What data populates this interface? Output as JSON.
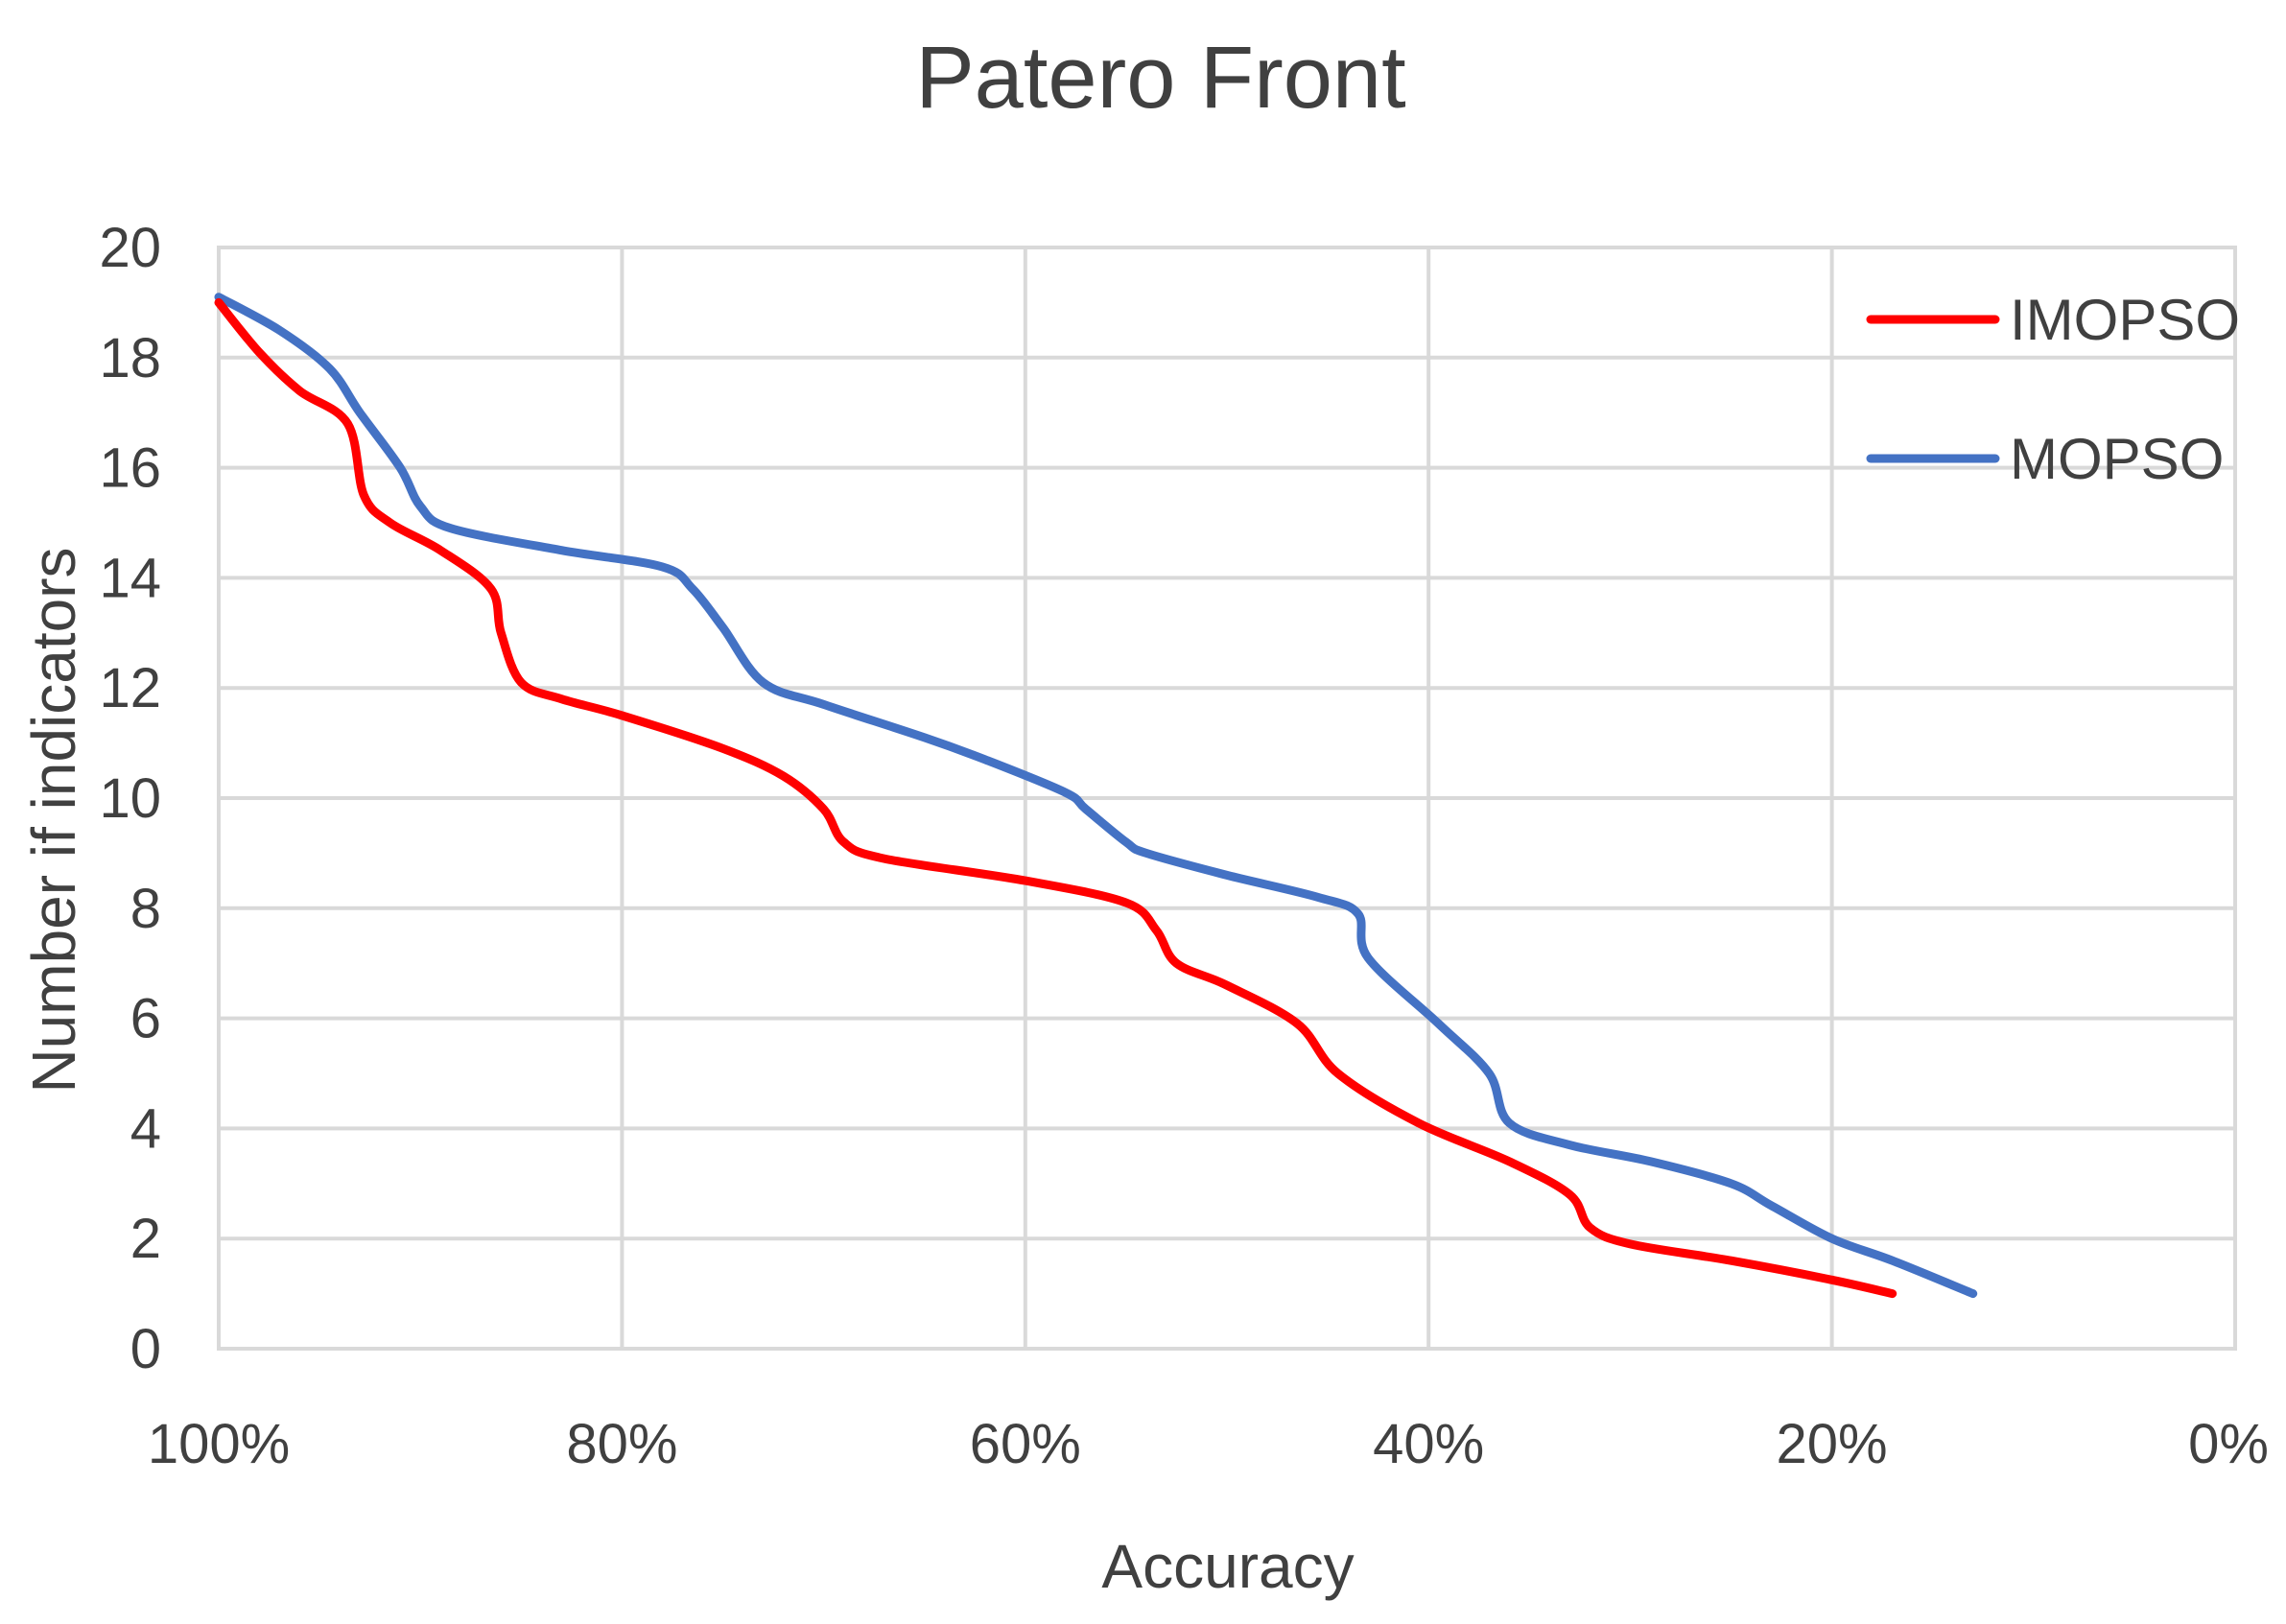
{
  "chart_data": {
    "type": "line",
    "title": "Patero Front",
    "xlabel": "Accuracy",
    "ylabel": "Number if indicators",
    "x_reversed": true,
    "xlim": [
      0,
      100
    ],
    "ylim": [
      0,
      20
    ],
    "x_ticks": [
      "100%",
      "80%",
      "60%",
      "40%",
      "20%",
      "0%"
    ],
    "x_tick_values": [
      100,
      80,
      60,
      40,
      20,
      0
    ],
    "y_ticks": [
      "0",
      "2",
      "4",
      "6",
      "8",
      "10",
      "12",
      "14",
      "16",
      "18",
      "20"
    ],
    "y_tick_values": [
      0,
      2,
      4,
      6,
      8,
      10,
      12,
      14,
      16,
      18,
      20
    ],
    "grid": true,
    "legend_position": "top-right",
    "series": [
      {
        "name": "IMOPSO",
        "color": "#ff0000",
        "points": [
          [
            100,
            19
          ],
          [
            98,
            18.1
          ],
          [
            96,
            17.4
          ],
          [
            93.6,
            16.8
          ],
          [
            92.8,
            15.5
          ],
          [
            91.5,
            15
          ],
          [
            89,
            14.5
          ],
          [
            86.5,
            13.8
          ],
          [
            86,
            13
          ],
          [
            85,
            12.1
          ],
          [
            83,
            11.8
          ],
          [
            80,
            11.5
          ],
          [
            75,
            10.9
          ],
          [
            72,
            10.4
          ],
          [
            70,
            9.8
          ],
          [
            69,
            9.2
          ],
          [
            67,
            8.9
          ],
          [
            60,
            8.5
          ],
          [
            55,
            8.1
          ],
          [
            53.5,
            7.6
          ],
          [
            52.5,
            7
          ],
          [
            50,
            6.6
          ],
          [
            46.5,
            5.9
          ],
          [
            44.5,
            5
          ],
          [
            40.5,
            4.1
          ],
          [
            36,
            3.4
          ],
          [
            33,
            2.8
          ],
          [
            32,
            2.2
          ],
          [
            30,
            1.9
          ],
          [
            25,
            1.6
          ],
          [
            20,
            1.25
          ],
          [
            17,
            1
          ]
        ]
      },
      {
        "name": "MOPSO",
        "color": "#4472c4",
        "points": [
          [
            100,
            19.1
          ],
          [
            97,
            18.5
          ],
          [
            94.5,
            17.8
          ],
          [
            93,
            17
          ],
          [
            91,
            16
          ],
          [
            90,
            15.3
          ],
          [
            88.5,
            14.9
          ],
          [
            83,
            14.5
          ],
          [
            78,
            14.2
          ],
          [
            76.5,
            13.8
          ],
          [
            75,
            13.1
          ],
          [
            73,
            12.1
          ],
          [
            70,
            11.7
          ],
          [
            65,
            11.1
          ],
          [
            62,
            10.7
          ],
          [
            58,
            10.1
          ],
          [
            57,
            9.8
          ],
          [
            55,
            9.2
          ],
          [
            54,
            9
          ],
          [
            50,
            8.6
          ],
          [
            45.5,
            8.2
          ],
          [
            43.5,
            7.9
          ],
          [
            43,
            7.1
          ],
          [
            39.5,
            5.9
          ],
          [
            37,
            5
          ],
          [
            36,
            4.1
          ],
          [
            33,
            3.7
          ],
          [
            29,
            3.4
          ],
          [
            25,
            3
          ],
          [
            23,
            2.6
          ],
          [
            20,
            2
          ],
          [
            17,
            1.6
          ],
          [
            13,
            1
          ]
        ]
      }
    ]
  }
}
